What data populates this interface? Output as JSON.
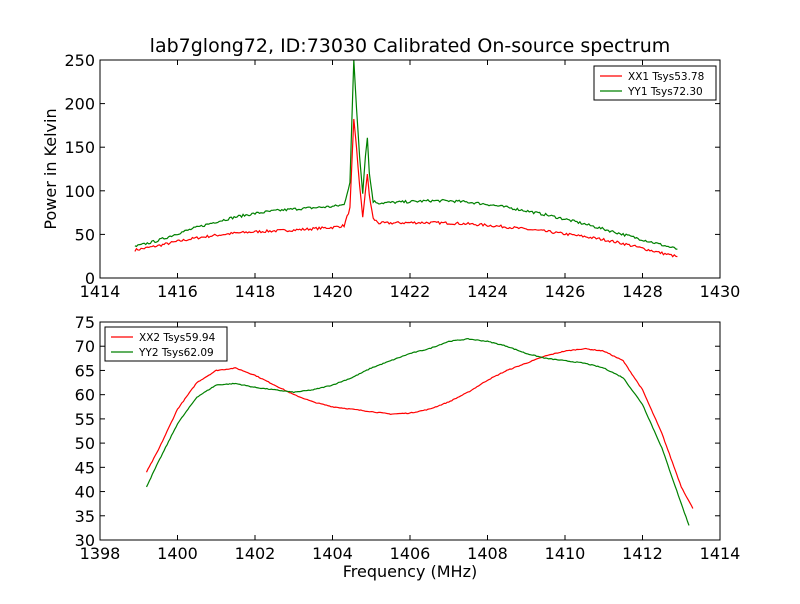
{
  "title": "lab7glong72, ID:73030 Calibrated On-source spectrum",
  "chart_data": [
    {
      "type": "line",
      "ylabel": "Power in Kelvin",
      "xlabel": "",
      "xlim": [
        1414,
        1430
      ],
      "ylim": [
        0,
        250
      ],
      "xticks": [
        "1414",
        "1416",
        "1418",
        "1420",
        "1422",
        "1424",
        "1426",
        "1428",
        "1430"
      ],
      "yticks": [
        "0",
        "50",
        "100",
        "150",
        "200",
        "250"
      ],
      "legend_position": "top-right",
      "series": [
        {
          "name": "XX1 Tsys53.78",
          "color": "#ff0000",
          "points": [
            [
              1414.9,
              32
            ],
            [
              1415.5,
              37
            ],
            [
              1416,
              42
            ],
            [
              1416.5,
              46
            ],
            [
              1417,
              49
            ],
            [
              1417.5,
              51.5
            ],
            [
              1418,
              53
            ],
            [
              1418.5,
              54
            ],
            [
              1419,
              55
            ],
            [
              1419.5,
              56.5
            ],
            [
              1420,
              58
            ],
            [
              1420.3,
              60
            ],
            [
              1420.45,
              80
            ],
            [
              1420.55,
              181
            ],
            [
              1420.62,
              150
            ],
            [
              1420.7,
              105
            ],
            [
              1420.78,
              70
            ],
            [
              1420.85,
              100
            ],
            [
              1420.9,
              118
            ],
            [
              1420.95,
              95
            ],
            [
              1421.05,
              68
            ],
            [
              1421.2,
              63
            ],
            [
              1421.5,
              63
            ],
            [
              1422,
              63.5
            ],
            [
              1422.5,
              63.5
            ],
            [
              1423,
              63
            ],
            [
              1423.5,
              62
            ],
            [
              1424,
              60.5
            ],
            [
              1424.5,
              58.5
            ],
            [
              1425,
              56
            ],
            [
              1425.5,
              53.5
            ],
            [
              1426,
              50.5
            ],
            [
              1426.5,
              47.5
            ],
            [
              1427,
              44
            ],
            [
              1427.5,
              39.5
            ],
            [
              1428,
              34
            ],
            [
              1428.5,
              28.5
            ],
            [
              1428.9,
              24.5
            ]
          ]
        },
        {
          "name": "YY1 Tsys72.30",
          "color": "#008000",
          "points": [
            [
              1414.9,
              36
            ],
            [
              1415.5,
              43
            ],
            [
              1416,
              51
            ],
            [
              1416.5,
              58
            ],
            [
              1417,
              64.5
            ],
            [
              1417.5,
              70
            ],
            [
              1418,
              74
            ],
            [
              1418.5,
              77
            ],
            [
              1419,
              79
            ],
            [
              1419.5,
              80.5
            ],
            [
              1420,
              82
            ],
            [
              1420.3,
              84
            ],
            [
              1420.45,
              110
            ],
            [
              1420.55,
              250
            ],
            [
              1420.62,
              195
            ],
            [
              1420.7,
              140
            ],
            [
              1420.78,
              98
            ],
            [
              1420.85,
              140
            ],
            [
              1420.9,
              162
            ],
            [
              1420.95,
              120
            ],
            [
              1421.05,
              88
            ],
            [
              1421.2,
              86
            ],
            [
              1421.5,
              86.5
            ],
            [
              1422,
              87.5
            ],
            [
              1422.5,
              88.5
            ],
            [
              1423,
              88.5
            ],
            [
              1423.5,
              87
            ],
            [
              1424,
              84.5
            ],
            [
              1424.5,
              81
            ],
            [
              1425,
              77
            ],
            [
              1425.5,
              72.5
            ],
            [
              1426,
              67.5
            ],
            [
              1426.5,
              62
            ],
            [
              1427,
              56
            ],
            [
              1427.5,
              50
            ],
            [
              1428,
              44
            ],
            [
              1428.5,
              38
            ],
            [
              1428.9,
              33
            ]
          ]
        }
      ]
    },
    {
      "type": "line",
      "xlabel": "Frequency (MHz)",
      "ylabel": "",
      "xlim": [
        1398,
        1414
      ],
      "ylim": [
        30,
        75
      ],
      "xticks": [
        "1398",
        "1400",
        "1402",
        "1404",
        "1406",
        "1408",
        "1410",
        "1412",
        "1414"
      ],
      "yticks": [
        "30",
        "35",
        "40",
        "45",
        "50",
        "55",
        "60",
        "65",
        "70",
        "75"
      ],
      "legend_position": "top-left",
      "series": [
        {
          "name": "XX2 Tsys59.94",
          "color": "#ff0000",
          "points": [
            [
              1399.2,
              44
            ],
            [
              1399.5,
              48.5
            ],
            [
              1400,
              57
            ],
            [
              1400.5,
              62.5
            ],
            [
              1401,
              65
            ],
            [
              1401.5,
              65.5
            ],
            [
              1402,
              64
            ],
            [
              1402.5,
              62
            ],
            [
              1403,
              60
            ],
            [
              1403.5,
              58.5
            ],
            [
              1404,
              57.5
            ],
            [
              1404.5,
              57
            ],
            [
              1405,
              56.5
            ],
            [
              1405.5,
              56
            ],
            [
              1406,
              56.2
            ],
            [
              1406.5,
              57
            ],
            [
              1407,
              58.5
            ],
            [
              1407.5,
              60.5
            ],
            [
              1408,
              63
            ],
            [
              1408.5,
              65
            ],
            [
              1409,
              66.5
            ],
            [
              1409.5,
              68
            ],
            [
              1410,
              69
            ],
            [
              1410.5,
              69.5
            ],
            [
              1411,
              69
            ],
            [
              1411.5,
              67
            ],
            [
              1412,
              61
            ],
            [
              1412.5,
              52
            ],
            [
              1413,
              41
            ],
            [
              1413.3,
              36.5
            ]
          ]
        },
        {
          "name": "YY2 Tsys62.09",
          "color": "#008000",
          "points": [
            [
              1399.2,
              41
            ],
            [
              1399.5,
              46
            ],
            [
              1400,
              54
            ],
            [
              1400.5,
              59.5
            ],
            [
              1401,
              62
            ],
            [
              1401.5,
              62.3
            ],
            [
              1402,
              61.5
            ],
            [
              1402.5,
              61
            ],
            [
              1403,
              60.5
            ],
            [
              1403.5,
              61
            ],
            [
              1404,
              62
            ],
            [
              1404.5,
              63.5
            ],
            [
              1405,
              65.5
            ],
            [
              1405.5,
              67
            ],
            [
              1406,
              68.5
            ],
            [
              1406.5,
              69.5
            ],
            [
              1407,
              71
            ],
            [
              1407.5,
              71.5
            ],
            [
              1408,
              71
            ],
            [
              1408.5,
              70
            ],
            [
              1409,
              68.5
            ],
            [
              1409.5,
              67.5
            ],
            [
              1410,
              67
            ],
            [
              1410.5,
              66.5
            ],
            [
              1411,
              65.5
            ],
            [
              1411.5,
              63.5
            ],
            [
              1412,
              58
            ],
            [
              1412.5,
              49
            ],
            [
              1413,
              37.5
            ],
            [
              1413.2,
              33
            ]
          ]
        }
      ]
    }
  ]
}
